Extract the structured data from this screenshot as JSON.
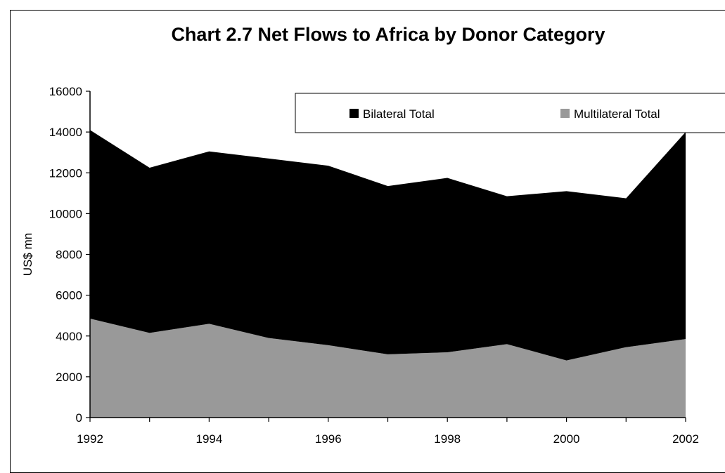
{
  "chart_data": {
    "type": "area",
    "stacked": true,
    "title": "Chart 2.7 Net Flows to Africa by Donor Category",
    "xlabel": "",
    "ylabel": "US$ mn",
    "x": [
      1992,
      1993,
      1994,
      1995,
      1996,
      1997,
      1998,
      1999,
      2000,
      2001,
      2002
    ],
    "x_ticks": [
      "1992",
      "1994",
      "1996",
      "1998",
      "2000",
      "2002"
    ],
    "y_ticks": [
      "0",
      "2000",
      "4000",
      "6000",
      "8000",
      "10000",
      "12000",
      "14000",
      "16000"
    ],
    "ylim": [
      0,
      16000
    ],
    "grid": false,
    "legend_position": "top-right",
    "series": [
      {
        "name": "Multilateral Total",
        "color": "#999999",
        "values": [
          4850,
          4150,
          4600,
          3900,
          3550,
          3100,
          3200,
          3600,
          2800,
          3450,
          3850
        ]
      },
      {
        "name": "Bilateral Total",
        "color": "#000000",
        "values": [
          9250,
          8100,
          8450,
          8800,
          8800,
          8250,
          8550,
          7250,
          8300,
          7300,
          10150
        ]
      }
    ]
  }
}
